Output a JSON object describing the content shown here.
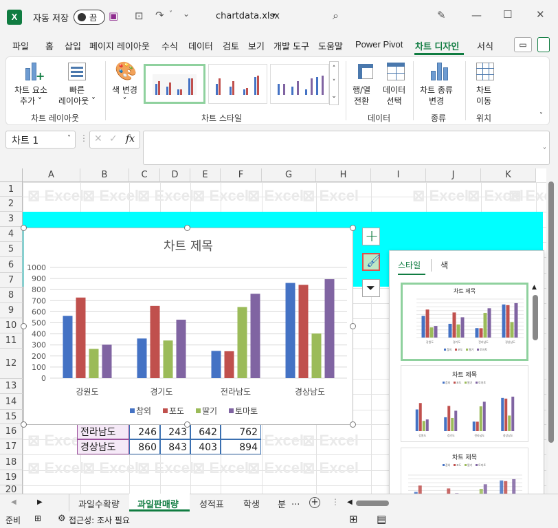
{
  "titlebar": {
    "autosave_label": "자동 저장",
    "autosave_state": "끔",
    "filename": "chartdata.xlsx",
    "filename_caret": "▾"
  },
  "tabs": [
    "파일",
    "홈",
    "삽입",
    "페이지 레이아웃",
    "수식",
    "데이터",
    "검토",
    "보기",
    "개발 도구",
    "도움말",
    "Power Pivot",
    "차트 디자인",
    "서식"
  ],
  "ribbon": {
    "add_element": [
      "차트 요소",
      "추가 ˅"
    ],
    "quick_layout": [
      "빠른",
      "레이아웃 ˅"
    ],
    "layout_group": "차트 레이아웃",
    "change_color": [
      "색 변경",
      "˅"
    ],
    "style_group": "차트 스타일",
    "switch_rowcol": [
      "행/열",
      "전환"
    ],
    "select_data": [
      "데이터",
      "선택"
    ],
    "data_group": "데이터",
    "change_type": [
      "차트 종류",
      "변경"
    ],
    "type_group": "종류",
    "move_chart": [
      "차트",
      "이동"
    ],
    "location_group": "위치"
  },
  "formula": {
    "namebox": "차트 1",
    "fx": "fx"
  },
  "columns": [
    "A",
    "B",
    "C",
    "D",
    "E",
    "F",
    "G",
    "H",
    "I",
    "J",
    "K"
  ],
  "rows": [
    "1",
    "2",
    "3",
    "4",
    "5",
    "6",
    "7",
    "8",
    "9",
    "10",
    "11",
    "12",
    "13",
    "14",
    "15",
    "16",
    "17",
    "18",
    "19",
    "20"
  ],
  "watermark": "Excel",
  "watermark_small": "Microsoft®",
  "table_rows": [
    {
      "name": "전라남도",
      "v": [
        "246",
        "243",
        "642",
        "762"
      ]
    },
    {
      "name": "경상남도",
      "v": [
        "860",
        "843",
        "403",
        "894"
      ]
    }
  ],
  "chart_data": {
    "type": "bar",
    "title": "차트 제목",
    "categories": [
      "강원도",
      "경기도",
      "전라남도",
      "경상남도"
    ],
    "series": [
      {
        "name": "참외",
        "color": "#4472c4",
        "values": [
          562,
          358,
          246,
          860
        ]
      },
      {
        "name": "포도",
        "color": "#c0504d",
        "values": [
          728,
          653,
          243,
          843
        ]
      },
      {
        "name": "딸기",
        "color": "#9bbb59",
        "values": [
          264,
          340,
          642,
          403
        ]
      },
      {
        "name": "토마토",
        "color": "#8064a2",
        "values": [
          302,
          528,
          762,
          894
        ]
      }
    ],
    "ylim": [
      0,
      1000
    ],
    "yticks": [
      "0",
      "100",
      "200",
      "300",
      "400",
      "500",
      "600",
      "700",
      "800",
      "900",
      "1000"
    ],
    "grid": true,
    "legend": "bottom"
  },
  "style_pane": {
    "tab_style": "스타일",
    "tab_color": "색",
    "thumb_title": "차트 제목"
  },
  "sheets": [
    "과일수확량",
    "과일판매량",
    "성적표",
    "학생",
    "분"
  ],
  "sheet_more": "...",
  "status": {
    "ready": "준비",
    "accessibility": "접근성: 조사 필요"
  }
}
